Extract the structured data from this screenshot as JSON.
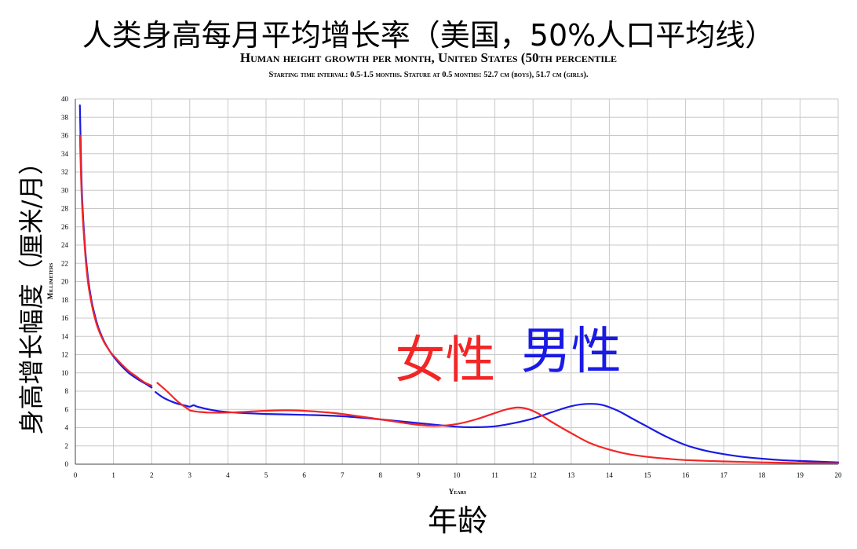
{
  "title_cn": "人类身高每月平均增长率（美国，50%人口平均线）",
  "title_en": "Human height growth per month, United States (50th percentile",
  "subtitle_en": "Starting time interval: 0.5-1.5 months. Stature at 0.5 months: 52.7 cm (boys), 51.7 cm (girls).",
  "ylabel_cn": "身高增长幅度（厘米/月）",
  "ylabel_en": "Millimeters",
  "xlabel_en": "Years",
  "xlabel_cn": "年龄",
  "chart_data": {
    "type": "line",
    "xlim": [
      0,
      20
    ],
    "ylim": [
      0,
      40
    ],
    "x_ticks": [
      0,
      1,
      2,
      3,
      4,
      5,
      6,
      7,
      8,
      9,
      10,
      11,
      12,
      13,
      14,
      15,
      16,
      17,
      18,
      19,
      20
    ],
    "y_ticks": [
      0,
      2,
      4,
      6,
      8,
      10,
      12,
      14,
      16,
      18,
      20,
      22,
      24,
      26,
      28,
      30,
      32,
      34,
      36,
      38,
      40
    ],
    "grid": true,
    "series": [
      {
        "name": "男性",
        "color": "#1a1ae6",
        "segments": [
          {
            "x": [
              0.12,
              0.17,
              0.25,
              0.33,
              0.42,
              0.5,
              0.6,
              0.75,
              0.9,
              1.0,
              1.2,
              1.4,
              1.6,
              1.8,
              2.0
            ],
            "y": [
              39.3,
              30.0,
              24.0,
              20.5,
              18.0,
              16.5,
              15.0,
              13.5,
              12.4,
              11.8,
              10.8,
              10.0,
              9.4,
              8.9,
              8.4
            ]
          },
          {
            "x": [
              2.1,
              2.3,
              2.5,
              2.7,
              2.9,
              3.0,
              3.1,
              3.2,
              3.5,
              4.0,
              5.0,
              6.0,
              7.0,
              8.0,
              9.0,
              10.0,
              10.5,
              11.0,
              11.5,
              12.0,
              12.5,
              13.0,
              13.4,
              13.8,
              14.2,
              14.6,
              15.0,
              15.5,
              16.0,
              16.5,
              17.0,
              17.5,
              18.0,
              18.5,
              19.0,
              20.0
            ],
            "y": [
              7.9,
              7.3,
              6.9,
              6.6,
              6.4,
              6.3,
              6.45,
              6.3,
              6.0,
              5.7,
              5.5,
              5.4,
              5.25,
              4.9,
              4.5,
              4.1,
              4.05,
              4.15,
              4.5,
              5.0,
              5.7,
              6.35,
              6.6,
              6.5,
              5.9,
              5.0,
              4.1,
              3.0,
              2.1,
              1.5,
              1.1,
              0.8,
              0.6,
              0.45,
              0.35,
              0.2
            ]
          }
        ]
      },
      {
        "name": "女性",
        "color": "#f22626",
        "segments": [
          {
            "x": [
              0.12,
              0.17,
              0.25,
              0.33,
              0.42,
              0.5,
              0.6,
              0.75,
              0.9,
              1.0,
              1.2,
              1.4,
              1.6,
              1.8,
              2.0
            ],
            "y": [
              36.0,
              29.0,
              23.5,
              20.0,
              17.7,
              16.2,
              14.8,
              13.4,
              12.4,
              11.9,
              11.0,
              10.2,
              9.6,
              9.0,
              8.6
            ]
          },
          {
            "x": [
              2.15,
              2.4,
              2.7,
              2.9,
              3.0,
              3.05,
              3.2,
              3.5,
              4.0,
              4.5,
              5.0,
              5.5,
              6.0,
              6.5,
              7.0,
              8.0,
              9.0,
              9.5,
              10.0,
              10.5,
              11.0,
              11.3,
              11.6,
              11.9,
              12.2,
              12.5,
              13.0,
              13.5,
              14.0,
              14.5,
              15.0,
              15.5,
              16.0,
              17.0,
              18.0,
              19.0,
              20.0
            ],
            "y": [
              8.9,
              8.0,
              6.8,
              6.2,
              5.9,
              5.85,
              5.75,
              5.65,
              5.65,
              5.75,
              5.85,
              5.9,
              5.85,
              5.7,
              5.5,
              4.9,
              4.3,
              4.2,
              4.4,
              4.9,
              5.6,
              6.0,
              6.2,
              6.0,
              5.4,
              4.6,
              3.4,
              2.3,
              1.6,
              1.1,
              0.8,
              0.6,
              0.45,
              0.3,
              0.2,
              0.12,
              0.1
            ]
          }
        ]
      }
    ],
    "annotations": [
      {
        "text": "女性",
        "x": 9.7,
        "y": 9.5,
        "color": "#f22626"
      },
      {
        "text": "男性",
        "x": 13.0,
        "y": 10.5,
        "color": "#1a1ae6"
      }
    ]
  }
}
